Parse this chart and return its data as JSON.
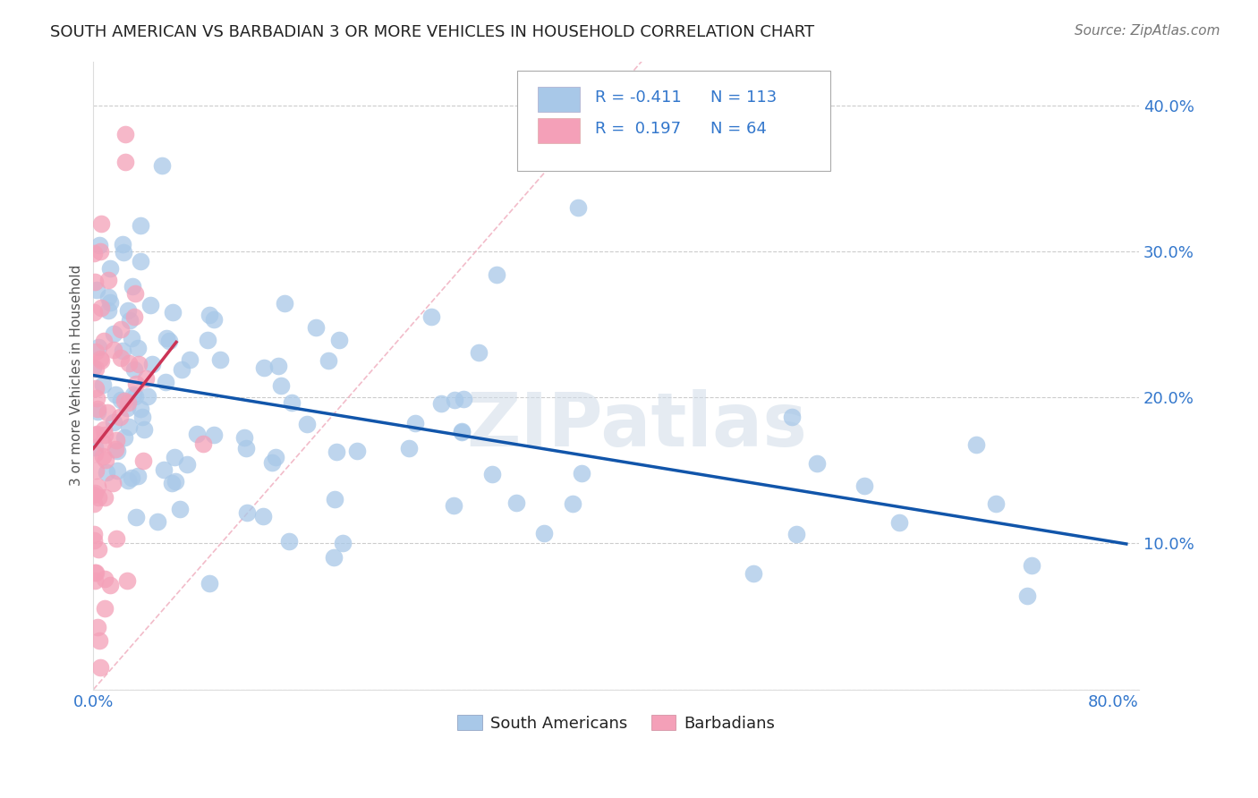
{
  "title": "SOUTH AMERICAN VS BARBADIAN 3 OR MORE VEHICLES IN HOUSEHOLD CORRELATION CHART",
  "source": "Source: ZipAtlas.com",
  "ylabel_text": "3 or more Vehicles in Household",
  "xlim": [
    0.0,
    0.82
  ],
  "ylim": [
    0.0,
    0.43
  ],
  "x_tick_positions": [
    0.0,
    0.1,
    0.2,
    0.3,
    0.4,
    0.5,
    0.6,
    0.7,
    0.8
  ],
  "x_tick_labels": [
    "0.0%",
    "",
    "",
    "",
    "",
    "",
    "",
    "",
    "80.0%"
  ],
  "y_tick_positions": [
    0.0,
    0.1,
    0.2,
    0.3,
    0.4
  ],
  "y_tick_labels": [
    "",
    "10.0%",
    "20.0%",
    "30.0%",
    "40.0%"
  ],
  "legend_r_sa": "-0.411",
  "legend_n_sa": "113",
  "legend_r_barb": "0.197",
  "legend_n_barb": "64",
  "sa_color": "#a8c8e8",
  "barb_color": "#f4a0b8",
  "sa_line_color": "#1155aa",
  "barb_line_color": "#cc3355",
  "diag_line_color": "#f0b0c0",
  "watermark_color": "#d0dce8",
  "grid_color": "#cccccc",
  "title_color": "#222222",
  "tick_color": "#3377cc",
  "source_color": "#777777",
  "ylabel_color": "#555555",
  "bottom_legend_text_color": "#222222"
}
